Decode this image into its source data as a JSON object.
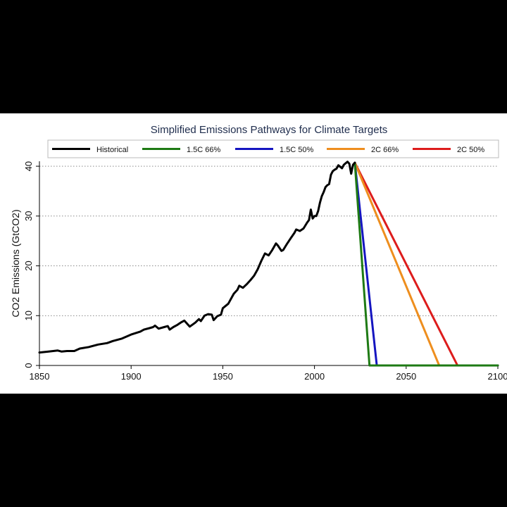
{
  "chart_data": {
    "type": "line",
    "title": "Simplified Emissions Pathways for Climate Targets",
    "xlabel": "",
    "ylabel": "CO2 Emissions (GtCO2)",
    "xlim": [
      1850,
      2100
    ],
    "ylim": [
      0,
      41
    ],
    "x_ticks": [
      "1850",
      "1900",
      "1950",
      "2000",
      "2050",
      "2100"
    ],
    "y_ticks": [
      "0",
      "10",
      "20",
      "30",
      "40"
    ],
    "grid": "horizontal-dotted",
    "legend_position": "top",
    "series": [
      {
        "name": "Historical",
        "color": "#000000",
        "points": [
          [
            1850,
            2.6
          ],
          [
            1855,
            2.8
          ],
          [
            1860,
            3.0
          ],
          [
            1862,
            2.8
          ],
          [
            1865,
            2.9
          ],
          [
            1869,
            2.9
          ],
          [
            1872,
            3.4
          ],
          [
            1877,
            3.7
          ],
          [
            1882,
            4.2
          ],
          [
            1887,
            4.5
          ],
          [
            1890,
            4.9
          ],
          [
            1895,
            5.4
          ],
          [
            1900,
            6.2
          ],
          [
            1905,
            6.8
          ],
          [
            1907,
            7.2
          ],
          [
            1910,
            7.5
          ],
          [
            1912,
            7.7
          ],
          [
            1913,
            8.0
          ],
          [
            1915,
            7.4
          ],
          [
            1918,
            7.7
          ],
          [
            1920,
            7.9
          ],
          [
            1921,
            7.2
          ],
          [
            1923,
            7.7
          ],
          [
            1925,
            8.1
          ],
          [
            1927,
            8.6
          ],
          [
            1929,
            9.0
          ],
          [
            1931,
            8.2
          ],
          [
            1932,
            7.8
          ],
          [
            1935,
            8.6
          ],
          [
            1937,
            9.3
          ],
          [
            1938,
            8.9
          ],
          [
            1940,
            10.0
          ],
          [
            1942,
            10.3
          ],
          [
            1944,
            10.2
          ],
          [
            1945,
            9.1
          ],
          [
            1947,
            9.9
          ],
          [
            1949,
            10.2
          ],
          [
            1950,
            11.5
          ],
          [
            1953,
            12.4
          ],
          [
            1956,
            14.4
          ],
          [
            1958,
            15.2
          ],
          [
            1959,
            16.0
          ],
          [
            1961,
            15.6
          ],
          [
            1963,
            16.3
          ],
          [
            1965,
            17.1
          ],
          [
            1967,
            18.0
          ],
          [
            1969,
            19.3
          ],
          [
            1971,
            21.0
          ],
          [
            1973,
            22.5
          ],
          [
            1975,
            22.1
          ],
          [
            1977,
            23.2
          ],
          [
            1979,
            24.5
          ],
          [
            1980,
            24.1
          ],
          [
            1982,
            23.0
          ],
          [
            1983,
            23.2
          ],
          [
            1985,
            24.4
          ],
          [
            1987,
            25.5
          ],
          [
            1989,
            26.6
          ],
          [
            1990,
            27.3
          ],
          [
            1992,
            27.0
          ],
          [
            1994,
            27.5
          ],
          [
            1996,
            28.7
          ],
          [
            1997,
            29.2
          ],
          [
            1998,
            31.3
          ],
          [
            1999,
            29.5
          ],
          [
            2000,
            30.0
          ],
          [
            2001,
            30.0
          ],
          [
            2002,
            31.0
          ],
          [
            2003,
            32.7
          ],
          [
            2004,
            34.0
          ],
          [
            2005,
            34.8
          ],
          [
            2006,
            35.8
          ],
          [
            2007,
            36.2
          ],
          [
            2008,
            36.4
          ],
          [
            2009,
            38.3
          ],
          [
            2010,
            39.0
          ],
          [
            2011,
            39.3
          ],
          [
            2012,
            39.5
          ],
          [
            2013,
            40.2
          ],
          [
            2014,
            39.9
          ],
          [
            2015,
            39.6
          ],
          [
            2016,
            40.3
          ],
          [
            2017,
            40.6
          ],
          [
            2018,
            40.9
          ],
          [
            2019,
            40.5
          ],
          [
            2020,
            38.5
          ],
          [
            2021,
            40.3
          ],
          [
            2022,
            40.7
          ]
        ]
      },
      {
        "name": "1.5C 66%",
        "color": "#1e7a14",
        "points": [
          [
            2022,
            40.7
          ],
          [
            2030,
            0
          ],
          [
            2100,
            0
          ]
        ]
      },
      {
        "name": "1.5C 50%",
        "color": "#1515c0",
        "points": [
          [
            2022,
            40.7
          ],
          [
            2034,
            0
          ],
          [
            2100,
            0
          ]
        ]
      },
      {
        "name": "2C 66%",
        "color": "#ee8e1e",
        "points": [
          [
            2022,
            40.7
          ],
          [
            2068,
            0
          ],
          [
            2100,
            0
          ]
        ]
      },
      {
        "name": "2C 50%",
        "color": "#dd1c1c",
        "points": [
          [
            2022,
            40.7
          ],
          [
            2078,
            0
          ],
          [
            2100,
            0
          ]
        ]
      }
    ]
  }
}
